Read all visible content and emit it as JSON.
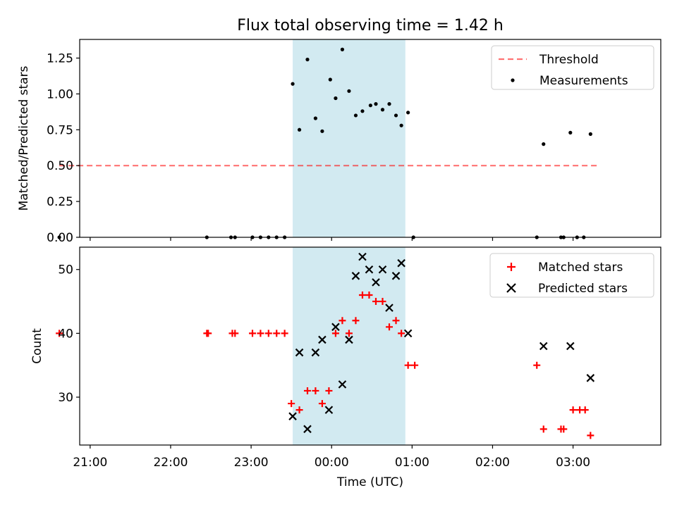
{
  "figure": {
    "title": "Flux total observing time = 1.42 h"
  },
  "colors": {
    "highlight_span": "#add8e6",
    "threshold": "#ff0000",
    "measurements": "#000000",
    "matched": "#ff0000",
    "predicted": "#000000"
  },
  "chart_data": [
    {
      "type": "scatter",
      "title": "Flux total observing time = 1.42 h",
      "xlabel": "",
      "ylabel": "Matched/Predicted stars",
      "x_unit": "hours relative to 00:00 UTC",
      "xlim": [
        -3.13,
        4.09
      ],
      "ylim": [
        0.0,
        1.38
      ],
      "y_ticks": [
        0.0,
        0.25,
        0.5,
        0.75,
        1.0,
        1.25
      ],
      "y_tick_labels": [
        "0.00",
        "0.25",
        "0.50",
        "0.75",
        "1.00",
        "1.25"
      ],
      "grid": false,
      "legend_position": "top-right",
      "highlight_span": {
        "x_start": "23:31",
        "x_end": "00:55"
      },
      "series": [
        {
          "name": "Threshold",
          "kind": "dashed-line",
          "points": [
            [
              "20:37",
              0.5
            ],
            [
              "03:20",
              0.5
            ]
          ]
        },
        {
          "name": "Measurements",
          "kind": "dots",
          "points": [
            [
              "20:37",
              0.0
            ],
            [
              "22:27",
              0.0
            ],
            [
              "22:45",
              0.0
            ],
            [
              "22:48",
              0.0
            ],
            [
              "23:01",
              0.0
            ],
            [
              "23:07",
              0.0
            ],
            [
              "23:13",
              0.0
            ],
            [
              "23:19",
              0.0
            ],
            [
              "23:25",
              0.0
            ],
            [
              "23:31",
              1.07
            ],
            [
              "23:36",
              0.75
            ],
            [
              "23:42",
              1.24
            ],
            [
              "23:48",
              0.83
            ],
            [
              "23:53",
              0.74
            ],
            [
              "23:59",
              1.1
            ],
            [
              "00:03",
              0.97
            ],
            [
              "00:08",
              1.31
            ],
            [
              "00:13",
              1.02
            ],
            [
              "00:18",
              0.85
            ],
            [
              "00:23",
              0.88
            ],
            [
              "00:29",
              0.92
            ],
            [
              "00:33",
              0.93
            ],
            [
              "00:38",
              0.89
            ],
            [
              "00:43",
              0.93
            ],
            [
              "00:48",
              0.85
            ],
            [
              "00:52",
              0.78
            ],
            [
              "00:57",
              0.87
            ],
            [
              "01:01",
              0.0
            ],
            [
              "02:33",
              0.0
            ],
            [
              "02:38",
              0.65
            ],
            [
              "02:51",
              0.0
            ],
            [
              "02:53",
              0.0
            ],
            [
              "02:58",
              0.73
            ],
            [
              "03:03",
              0.0
            ],
            [
              "03:08",
              0.0
            ],
            [
              "03:13",
              0.72
            ]
          ]
        }
      ]
    },
    {
      "type": "scatter",
      "title": "",
      "xlabel": "Time (UTC)",
      "ylabel": "Count",
      "x_unit": "hours relative to 00:00 UTC",
      "xlim": [
        -3.13,
        4.09
      ],
      "ylim": [
        22.5,
        53.5
      ],
      "x_tick_labels": [
        "21:00",
        "22:00",
        "23:00",
        "00:00",
        "01:00",
        "02:00",
        "03:00"
      ],
      "y_ticks": [
        30,
        40,
        50
      ],
      "y_tick_labels": [
        "30",
        "40",
        "50"
      ],
      "grid": false,
      "legend_position": "top-right",
      "highlight_span": {
        "x_start": "23:31",
        "x_end": "00:55"
      },
      "series": [
        {
          "name": "Matched stars",
          "kind": "plus",
          "points": [
            [
              "20:37",
              40
            ],
            [
              "22:27",
              40
            ],
            [
              "22:28",
              40
            ],
            [
              "22:46",
              40
            ],
            [
              "22:48",
              40
            ],
            [
              "23:01",
              40
            ],
            [
              "23:07",
              40
            ],
            [
              "23:13",
              40
            ],
            [
              "23:19",
              40
            ],
            [
              "23:25",
              40
            ],
            [
              "23:30",
              29
            ],
            [
              "23:36",
              28
            ],
            [
              "23:42",
              31
            ],
            [
              "23:48",
              31
            ],
            [
              "23:53",
              29
            ],
            [
              "23:58",
              31
            ],
            [
              "00:03",
              40
            ],
            [
              "00:08",
              42
            ],
            [
              "00:13",
              40
            ],
            [
              "00:18",
              42
            ],
            [
              "00:23",
              46
            ],
            [
              "00:28",
              46
            ],
            [
              "00:33",
              45
            ],
            [
              "00:38",
              45
            ],
            [
              "00:43",
              41
            ],
            [
              "00:48",
              42
            ],
            [
              "00:52",
              40
            ],
            [
              "00:57",
              35
            ],
            [
              "01:02",
              35
            ],
            [
              "02:33",
              35
            ],
            [
              "02:38",
              25
            ],
            [
              "02:51",
              25
            ],
            [
              "02:53",
              25
            ],
            [
              "03:00",
              28
            ],
            [
              "03:05",
              28
            ],
            [
              "03:09",
              28
            ],
            [
              "03:13",
              24
            ]
          ]
        },
        {
          "name": "Predicted stars",
          "kind": "cross",
          "points": [
            [
              "23:31",
              27
            ],
            [
              "23:36",
              37
            ],
            [
              "23:42",
              25
            ],
            [
              "23:48",
              37
            ],
            [
              "23:53",
              39
            ],
            [
              "23:58",
              28
            ],
            [
              "00:03",
              41
            ],
            [
              "00:08",
              32
            ],
            [
              "00:13",
              39
            ],
            [
              "00:18",
              49
            ],
            [
              "00:23",
              52
            ],
            [
              "00:28",
              50
            ],
            [
              "00:33",
              48
            ],
            [
              "00:38",
              50
            ],
            [
              "00:43",
              44
            ],
            [
              "00:48",
              49
            ],
            [
              "00:52",
              51
            ],
            [
              "00:57",
              40
            ],
            [
              "02:38",
              38
            ],
            [
              "02:58",
              38
            ],
            [
              "03:13",
              33
            ]
          ]
        }
      ]
    }
  ]
}
